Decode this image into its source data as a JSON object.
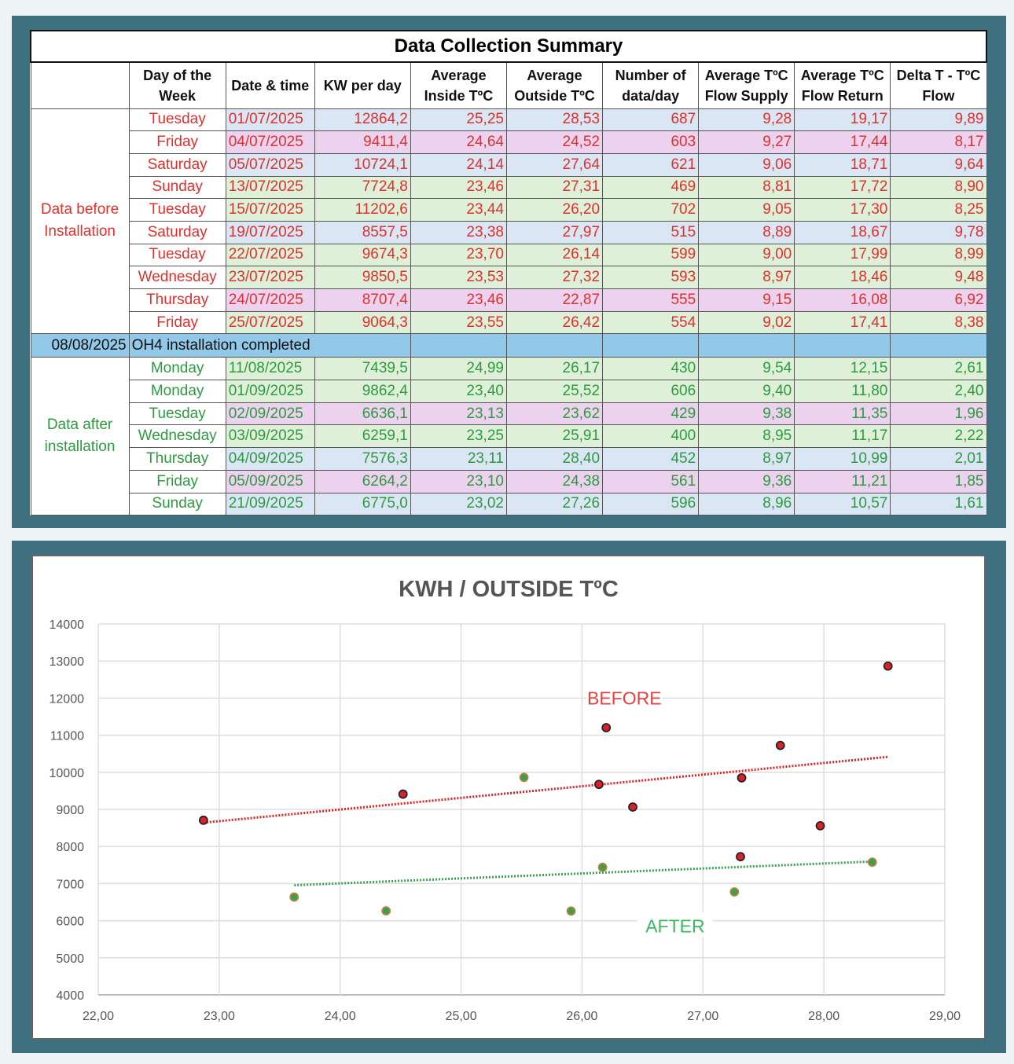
{
  "table": {
    "title": "Data Collection Summary",
    "headers": [
      "Day of the Week",
      "Date & time",
      "KW per day",
      "Average Inside TºC",
      "Average Outside TºC",
      "Number of data/day",
      "Average TºC Flow Supply",
      "Average TºC Flow Return",
      "Delta T - TºC Flow"
    ],
    "before_label": "Data before Installation",
    "after_label": "Data after installation",
    "banner_date": "08/08/2025",
    "banner_text": "OH4 installation completed",
    "colors": {
      "before_text": "#e0302c",
      "after_text": "#2e9a40",
      "blue": "#dae6f4",
      "pink": "#ecd2ee",
      "green": "#dff0d8",
      "banner": "#92c8e8"
    },
    "before_rows": [
      {
        "color": "blue",
        "cells": [
          "Tuesday",
          "01/07/2025",
          "12864,2",
          "25,25",
          "28,53",
          "687",
          "9,28",
          "19,17",
          "9,89"
        ]
      },
      {
        "color": "pink",
        "cells": [
          "Friday",
          "04/07/2025",
          "9411,4",
          "24,64",
          "24,52",
          "603",
          "9,27",
          "17,44",
          "8,17"
        ]
      },
      {
        "color": "blue",
        "cells": [
          "Saturday",
          "05/07/2025",
          "10724,1",
          "24,14",
          "27,64",
          "621",
          "9,06",
          "18,71",
          "9,64"
        ]
      },
      {
        "color": "green",
        "cells": [
          "Sunday",
          "13/07/2025",
          "7724,8",
          "23,46",
          "27,31",
          "469",
          "8,81",
          "17,72",
          "8,90"
        ]
      },
      {
        "color": "green",
        "cells": [
          "Tuesday",
          "15/07/2025",
          "11202,6",
          "23,44",
          "26,20",
          "702",
          "9,05",
          "17,30",
          "8,25"
        ]
      },
      {
        "color": "blue",
        "cells": [
          "Saturday",
          "19/07/2025",
          "8557,5",
          "23,38",
          "27,97",
          "515",
          "8,89",
          "18,67",
          "9,78"
        ]
      },
      {
        "color": "green",
        "cells": [
          "Tuesday",
          "22/07/2025",
          "9674,3",
          "23,70",
          "26,14",
          "599",
          "9,00",
          "17,99",
          "8,99"
        ]
      },
      {
        "color": "green",
        "cells": [
          "Wednesday",
          "23/07/2025",
          "9850,5",
          "23,53",
          "27,32",
          "593",
          "8,97",
          "18,46",
          "9,48"
        ]
      },
      {
        "color": "pink",
        "cells": [
          "Thursday",
          "24/07/2025",
          "8707,4",
          "23,46",
          "22,87",
          "555",
          "9,15",
          "16,08",
          "6,92"
        ]
      },
      {
        "color": "green",
        "cells": [
          "Friday",
          "25/07/2025",
          "9064,3",
          "23,55",
          "26,42",
          "554",
          "9,02",
          "17,41",
          "8,38"
        ]
      }
    ],
    "after_rows": [
      {
        "color": "green",
        "cells": [
          "Monday",
          "11/08/2025",
          "7439,5",
          "24,99",
          "26,17",
          "430",
          "9,54",
          "12,15",
          "2,61"
        ]
      },
      {
        "color": "green",
        "cells": [
          "Monday",
          "01/09/2025",
          "9862,4",
          "23,40",
          "25,52",
          "606",
          "9,40",
          "11,80",
          "2,40"
        ]
      },
      {
        "color": "pink",
        "cells": [
          "Tuesday",
          "02/09/2025",
          "6636,1",
          "23,13",
          "23,62",
          "429",
          "9,38",
          "11,35",
          "1,96"
        ]
      },
      {
        "color": "green",
        "cells": [
          "Wednesday",
          "03/09/2025",
          "6259,1",
          "23,25",
          "25,91",
          "400",
          "8,95",
          "11,17",
          "2,22"
        ]
      },
      {
        "color": "blue",
        "cells": [
          "Thursday",
          "04/09/2025",
          "7576,3",
          "23,11",
          "28,40",
          "452",
          "8,97",
          "10,99",
          "2,01"
        ]
      },
      {
        "color": "pink",
        "cells": [
          "Friday",
          "05/09/2025",
          "6264,2",
          "23,10",
          "24,38",
          "561",
          "9,36",
          "11,21",
          "1,85"
        ]
      },
      {
        "color": "blue",
        "cells": [
          "Sunday",
          "21/09/2025",
          "6775,0",
          "23,02",
          "27,26",
          "596",
          "8,96",
          "10,57",
          "1,61"
        ]
      }
    ]
  },
  "chart_data": {
    "type": "scatter",
    "title": "KWH / OUTSIDE TºC",
    "xlabel": "",
    "ylabel": "",
    "xlim": [
      22,
      29
    ],
    "ylim": [
      4000,
      14000
    ],
    "xticks": [
      "22,00",
      "23,00",
      "24,00",
      "25,00",
      "26,00",
      "27,00",
      "28,00",
      "29,00"
    ],
    "yticks": [
      "4000",
      "5000",
      "6000",
      "7000",
      "8000",
      "9000",
      "10000",
      "11000",
      "12000",
      "13000",
      "14000"
    ],
    "grid": true,
    "series": [
      {
        "name": "BEFORE",
        "color": "#e02020",
        "label_color": "#e84040",
        "trendline": "linear dotted",
        "points": [
          [
            28.53,
            12864.2
          ],
          [
            24.52,
            9411.4
          ],
          [
            27.64,
            10724.1
          ],
          [
            27.31,
            7724.8
          ],
          [
            26.2,
            11202.6
          ],
          [
            27.97,
            8557.5
          ],
          [
            26.14,
            9674.3
          ],
          [
            27.32,
            9850.5
          ],
          [
            22.87,
            8707.4
          ],
          [
            26.42,
            9064.3
          ]
        ]
      },
      {
        "name": "AFTER",
        "color": "#3aa050",
        "label_color": "#3cb860",
        "trendline": "linear dotted",
        "points": [
          [
            26.17,
            7439.5
          ],
          [
            25.52,
            9862.4
          ],
          [
            23.62,
            6636.1
          ],
          [
            25.91,
            6259.1
          ],
          [
            28.4,
            7576.3
          ],
          [
            24.38,
            6264.2
          ],
          [
            27.26,
            6775.0
          ]
        ]
      }
    ]
  }
}
